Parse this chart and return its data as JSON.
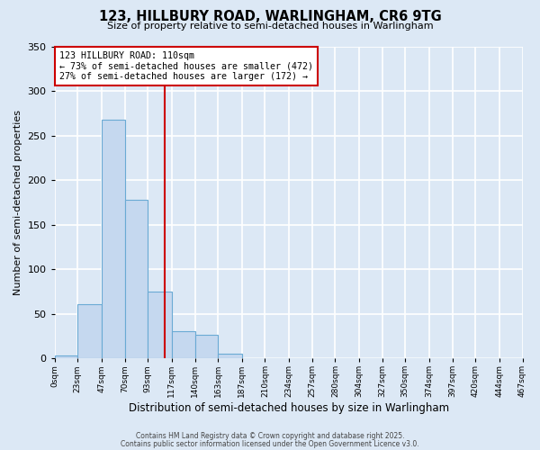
{
  "title": "123, HILLBURY ROAD, WARLINGHAM, CR6 9TG",
  "subtitle": "Size of property relative to semi-detached houses in Warlingham",
  "xlabel": "Distribution of semi-detached houses by size in Warlingham",
  "ylabel": "Number of semi-detached properties",
  "bin_edges": [
    0,
    23,
    47,
    70,
    93,
    117,
    140,
    163,
    187,
    210,
    234,
    257,
    280,
    304,
    327,
    350,
    374,
    397,
    420,
    444,
    467
  ],
  "bin_labels": [
    "0sqm",
    "23sqm",
    "47sqm",
    "70sqm",
    "93sqm",
    "117sqm",
    "140sqm",
    "163sqm",
    "187sqm",
    "210sqm",
    "234sqm",
    "257sqm",
    "280sqm",
    "304sqm",
    "327sqm",
    "350sqm",
    "374sqm",
    "397sqm",
    "420sqm",
    "444sqm",
    "467sqm"
  ],
  "counts": [
    3,
    61,
    268,
    178,
    75,
    30,
    26,
    5,
    0,
    0,
    0,
    0,
    0,
    0,
    0,
    0,
    0,
    0,
    0,
    0
  ],
  "bar_color": "#c5d8ef",
  "bar_edge_color": "#6aaad4",
  "bg_color": "#dce8f5",
  "grid_color": "#ffffff",
  "vline_x": 110,
  "vline_color": "#cc0000",
  "annotation_line1": "123 HILLBURY ROAD: 110sqm",
  "annotation_line2": "← 73% of semi-detached houses are smaller (472)",
  "annotation_line3": "27% of semi-detached houses are larger (172) →",
  "annotation_box_color": "#cc0000",
  "ylim": [
    0,
    350
  ],
  "yticks": [
    0,
    50,
    100,
    150,
    200,
    250,
    300,
    350
  ],
  "footer1": "Contains HM Land Registry data © Crown copyright and database right 2025.",
  "footer2": "Contains public sector information licensed under the Open Government Licence v3.0."
}
